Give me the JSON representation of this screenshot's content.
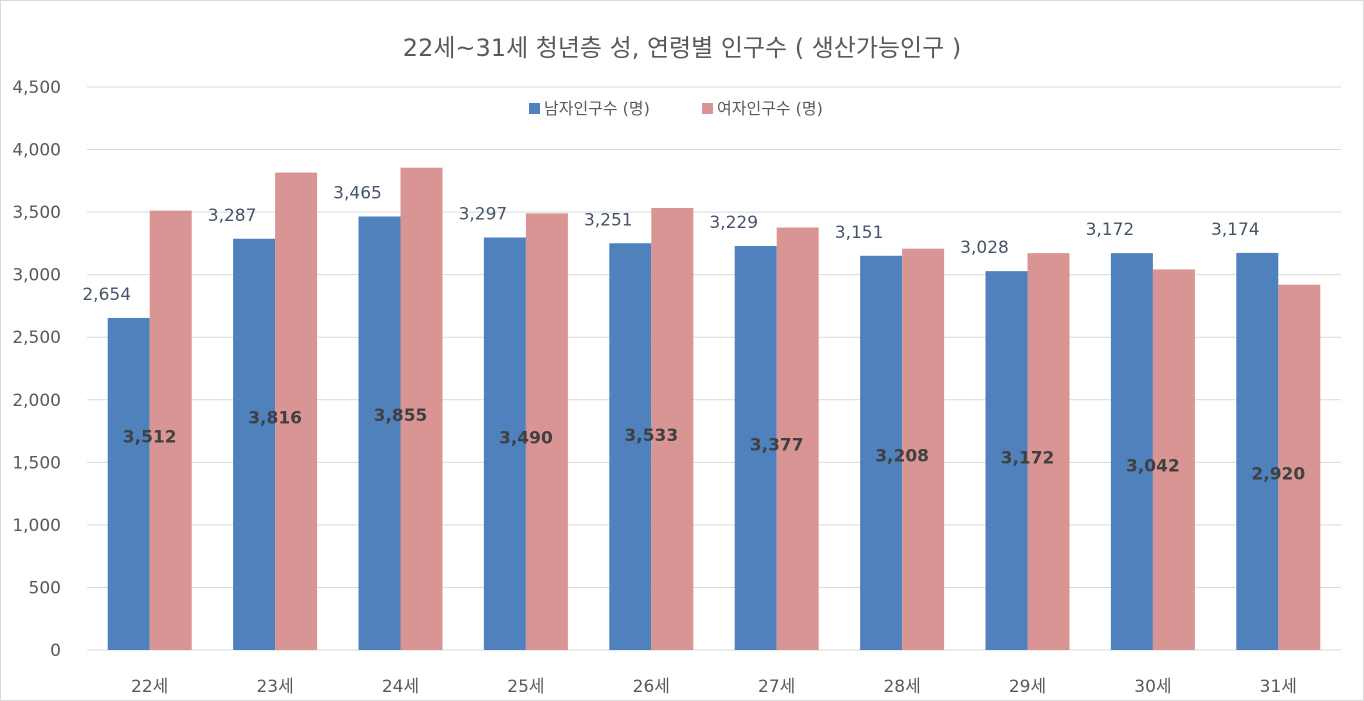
{
  "chart_data": {
    "type": "bar",
    "title": "22세~31세 청년층 성, 연령별 인구수 ( 생산가능인구 )",
    "categories": [
      "22세",
      "23세",
      "24세",
      "25세",
      "26세",
      "27세",
      "28세",
      "29세",
      "30세",
      "31세"
    ],
    "series": [
      {
        "name": "남자인구수 (명)",
        "color": "#4f81bd",
        "values": [
          2654,
          3287,
          3465,
          3297,
          3251,
          3229,
          3151,
          3028,
          3172,
          3174
        ],
        "labels": [
          "2,654",
          "3,287",
          "3,465",
          "3,297",
          "3,251",
          "3,229",
          "3,151",
          "3,028",
          "3,172",
          "3,174"
        ]
      },
      {
        "name": "여자인구수 (명)",
        "color": "#d99594",
        "values": [
          3512,
          3816,
          3855,
          3490,
          3533,
          3377,
          3208,
          3172,
          3042,
          2920
        ],
        "labels": [
          "3,512",
          "3,816",
          "3,855",
          "3,490",
          "3,533",
          "3,377",
          "3,208",
          "3,172",
          "3,042",
          "2,920"
        ]
      }
    ],
    "ylim": [
      0,
      4500
    ],
    "yticks": [
      0,
      500,
      1000,
      1500,
      2000,
      2500,
      3000,
      3500,
      4000,
      4500
    ],
    "ytick_labels": [
      "0",
      "500",
      "1,000",
      "1,500",
      "2,000",
      "2,500",
      "3,000",
      "3,500",
      "4,000",
      "4,500"
    ],
    "grid": true,
    "legend_position": "top-center"
  }
}
